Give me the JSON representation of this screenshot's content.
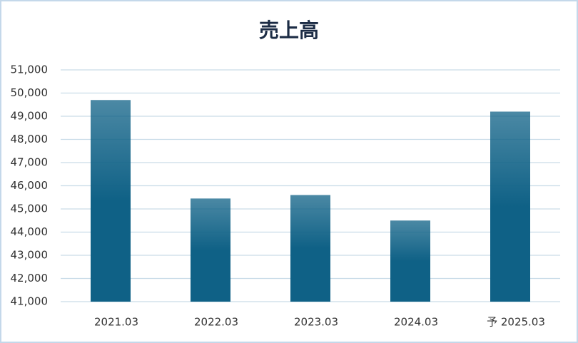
{
  "chart_data": {
    "type": "bar",
    "title": "売上高",
    "categories": [
      "2021.03",
      "2022.03",
      "2023.03",
      "2024.03",
      "予 2025.03"
    ],
    "values": [
      49700,
      45450,
      45600,
      44500,
      49200
    ],
    "color": "#0f6186",
    "ylim": [
      41000,
      51000
    ],
    "yticks": [
      {
        "value": 41000,
        "label": "41,000"
      },
      {
        "value": 42000,
        "label": "42,000"
      },
      {
        "value": 43000,
        "label": "43,000"
      },
      {
        "value": 44000,
        "label": "44,000"
      },
      {
        "value": 45000,
        "label": "45,000"
      },
      {
        "value": 46000,
        "label": "46,000"
      },
      {
        "value": 47000,
        "label": "47,000"
      },
      {
        "value": 48000,
        "label": "48,000"
      },
      {
        "value": 49000,
        "label": "49,000"
      },
      {
        "value": 50000,
        "label": "50,000"
      },
      {
        "value": 51000,
        "label": "51,000"
      }
    ],
    "grid": true
  }
}
